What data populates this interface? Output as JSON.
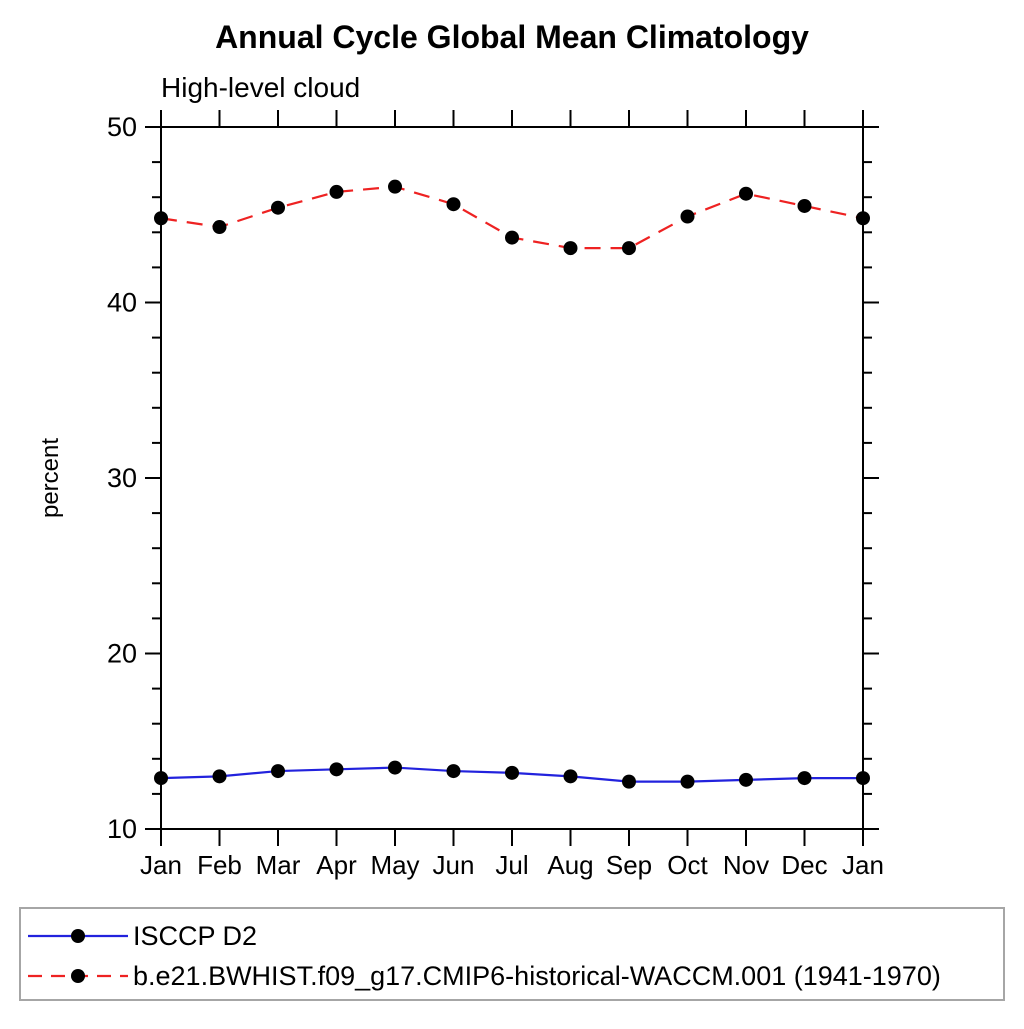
{
  "chart_data": {
    "type": "line",
    "title": "Annual Cycle Global Mean Climatology",
    "subtitle": "High-level cloud",
    "ylabel": "percent",
    "xlabel": "",
    "ylim": [
      10,
      50
    ],
    "y_major_ticks": [
      10,
      20,
      30,
      40,
      50
    ],
    "y_minor_step": 2,
    "grid": false,
    "legend_position": "bottom",
    "categories": [
      "Jan",
      "Feb",
      "Mar",
      "Apr",
      "May",
      "Jun",
      "Jul",
      "Aug",
      "Sep",
      "Oct",
      "Nov",
      "Dec",
      "Jan"
    ],
    "series": [
      {
        "name": "ISCCP D2",
        "color": "#2222dd",
        "line_style": "solid",
        "marker": "filled-circle",
        "marker_color": "#000000",
        "values": [
          12.9,
          13.0,
          13.3,
          13.4,
          13.5,
          13.3,
          13.2,
          13.0,
          12.7,
          12.7,
          12.8,
          12.9,
          12.9
        ]
      },
      {
        "name": "b.e21.BWHIST.f09_g17.CMIP6-historical-WACCM.001 (1941-1970)",
        "color": "#ee2222",
        "line_style": "dashed",
        "marker": "filled-circle",
        "marker_color": "#000000",
        "values": [
          44.8,
          44.3,
          45.4,
          46.3,
          46.6,
          45.6,
          43.7,
          43.1,
          43.1,
          44.9,
          46.2,
          45.5,
          44.8
        ]
      }
    ],
    "axis_color": "#000000",
    "legend_border_color": "#a6a6a6"
  }
}
